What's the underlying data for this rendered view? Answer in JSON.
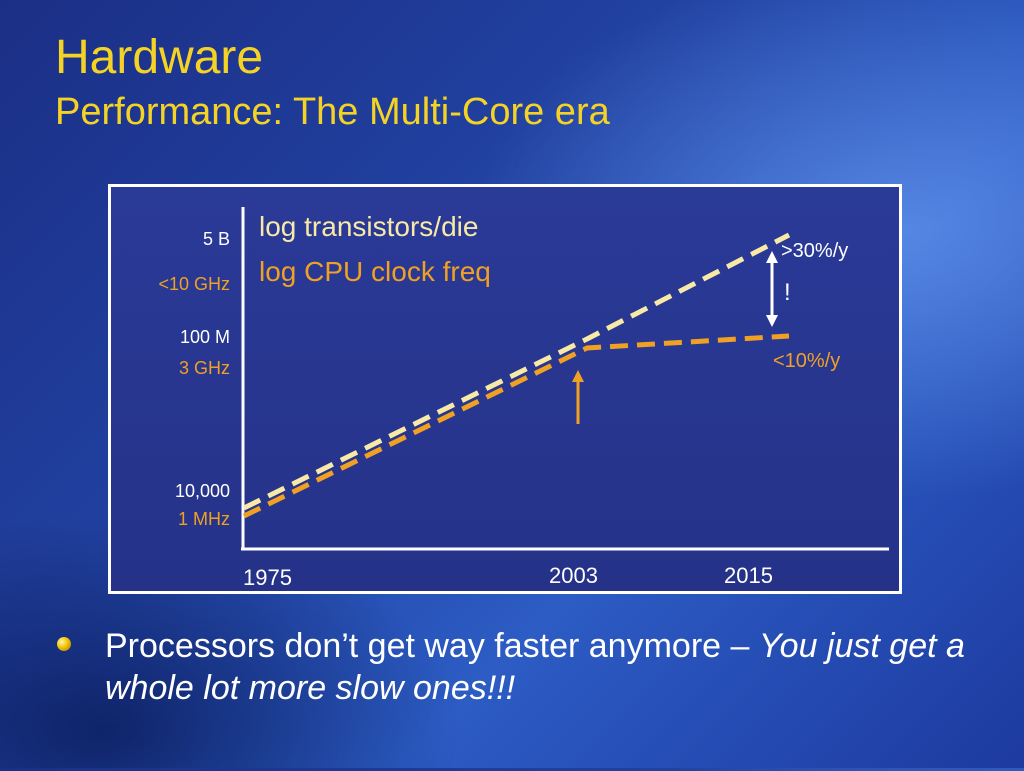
{
  "slide": {
    "title": "Hardware",
    "subtitle": "Performance: The Multi-Core era",
    "bullet": {
      "text": "Processors don’t get way faster anymore – ",
      "emphasis": "You just get a whole lot more slow ones!!!"
    }
  },
  "colors": {
    "title": "#f5d324",
    "transistors": "#f8eaa6",
    "clock": "#f0a023",
    "white": "#ffffff"
  },
  "chart_data": {
    "type": "line",
    "legend": [
      "log transistors/die",
      "log CPU clock freq"
    ],
    "x_ticks": [
      "1975",
      "2003",
      "2015"
    ],
    "x_range": [
      1975,
      2015
    ],
    "y_scale": "log",
    "y_tick_labels": [
      {
        "white": "5 B",
        "orange": "<10 GHz"
      },
      {
        "white": "100 M",
        "orange": "3 GHz"
      },
      {
        "white": "10,000",
        "orange": "1 MHz"
      }
    ],
    "series": [
      {
        "name": "log transistors/die",
        "points": [
          {
            "x": 1975,
            "y": 10000
          },
          {
            "x": 2003,
            "y": 100000000
          },
          {
            "x": 2015,
            "y": 5000000000
          }
        ]
      },
      {
        "name": "log CPU clock freq",
        "points": [
          {
            "x": 1975,
            "y": 1
          },
          {
            "x": 2003,
            "y": 3000
          },
          {
            "x": 2015,
            "y": 3500
          }
        ]
      }
    ],
    "annotations": {
      "upper_rate": ">30%/y",
      "lower_rate": "<10%/y",
      "gap_mark": "!"
    }
  }
}
